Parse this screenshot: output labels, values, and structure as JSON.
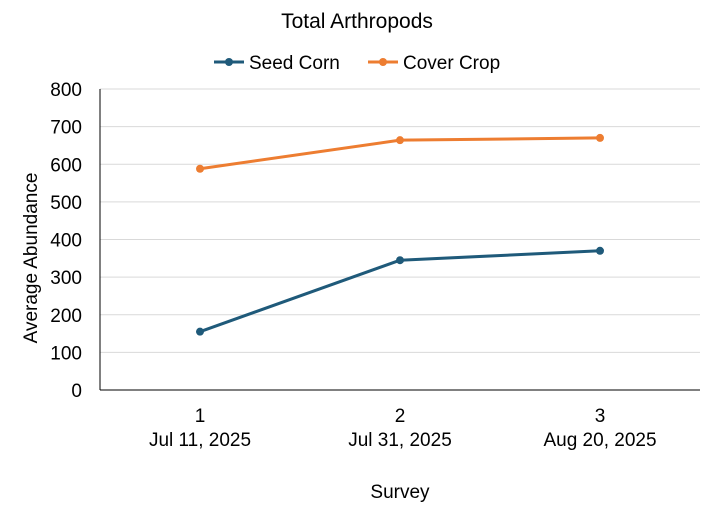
{
  "chart_data": {
    "type": "line",
    "title": "Total Arthropods",
    "xlabel": "Survey",
    "ylabel": "Average Abundance",
    "categories": [
      {
        "number": "1",
        "date": "Jul 11, 2025"
      },
      {
        "number": "2",
        "date": "Jul 31, 2025"
      },
      {
        "number": "3",
        "date": "Aug 20, 2025"
      }
    ],
    "ylim": [
      0,
      800
    ],
    "yticks": [
      "0",
      "100",
      "200",
      "300",
      "400",
      "500",
      "600",
      "700",
      "800"
    ],
    "grid": true,
    "legend_position": "top",
    "series": [
      {
        "name": "Seed Corn",
        "color": "#1f5a7a",
        "values": [
          155,
          345,
          370
        ]
      },
      {
        "name": "Cover Crop",
        "color": "#ed7d31",
        "values": [
          588,
          664,
          670
        ]
      }
    ]
  }
}
